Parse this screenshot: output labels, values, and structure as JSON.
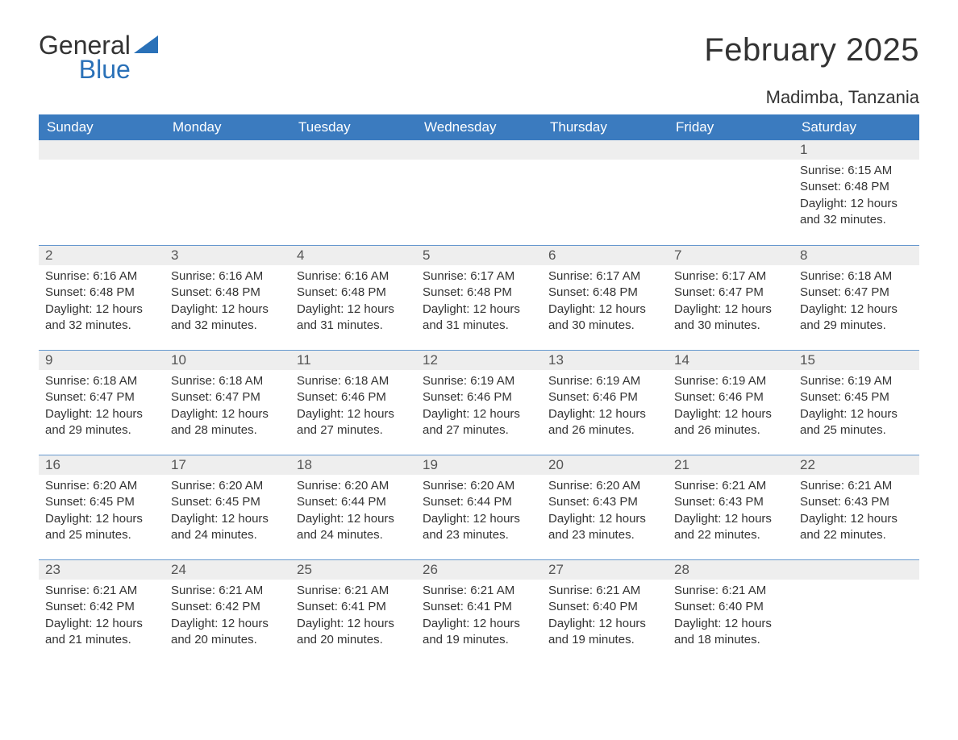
{
  "logo": {
    "line1": "General",
    "line2": "Blue",
    "shape_color": "#2a71b8"
  },
  "title": "February 2025",
  "location": "Madimba, Tanzania",
  "colors": {
    "header_bg": "#3b7bbf",
    "header_text": "#ffffff",
    "daynum_bg": "#eeeeee",
    "daynum_text": "#555555",
    "body_text": "#333333",
    "week_border": "#6698ce",
    "page_bg": "#ffffff"
  },
  "weekdays": [
    "Sunday",
    "Monday",
    "Tuesday",
    "Wednesday",
    "Thursday",
    "Friday",
    "Saturday"
  ],
  "weeks": [
    [
      {
        "num": "",
        "sunrise": "",
        "sunset": "",
        "daylight_a": "",
        "daylight_b": ""
      },
      {
        "num": "",
        "sunrise": "",
        "sunset": "",
        "daylight_a": "",
        "daylight_b": ""
      },
      {
        "num": "",
        "sunrise": "",
        "sunset": "",
        "daylight_a": "",
        "daylight_b": ""
      },
      {
        "num": "",
        "sunrise": "",
        "sunset": "",
        "daylight_a": "",
        "daylight_b": ""
      },
      {
        "num": "",
        "sunrise": "",
        "sunset": "",
        "daylight_a": "",
        "daylight_b": ""
      },
      {
        "num": "",
        "sunrise": "",
        "sunset": "",
        "daylight_a": "",
        "daylight_b": ""
      },
      {
        "num": "1",
        "sunrise": "Sunrise: 6:15 AM",
        "sunset": "Sunset: 6:48 PM",
        "daylight_a": "Daylight: 12 hours",
        "daylight_b": "and 32 minutes."
      }
    ],
    [
      {
        "num": "2",
        "sunrise": "Sunrise: 6:16 AM",
        "sunset": "Sunset: 6:48 PM",
        "daylight_a": "Daylight: 12 hours",
        "daylight_b": "and 32 minutes."
      },
      {
        "num": "3",
        "sunrise": "Sunrise: 6:16 AM",
        "sunset": "Sunset: 6:48 PM",
        "daylight_a": "Daylight: 12 hours",
        "daylight_b": "and 32 minutes."
      },
      {
        "num": "4",
        "sunrise": "Sunrise: 6:16 AM",
        "sunset": "Sunset: 6:48 PM",
        "daylight_a": "Daylight: 12 hours",
        "daylight_b": "and 31 minutes."
      },
      {
        "num": "5",
        "sunrise": "Sunrise: 6:17 AM",
        "sunset": "Sunset: 6:48 PM",
        "daylight_a": "Daylight: 12 hours",
        "daylight_b": "and 31 minutes."
      },
      {
        "num": "6",
        "sunrise": "Sunrise: 6:17 AM",
        "sunset": "Sunset: 6:48 PM",
        "daylight_a": "Daylight: 12 hours",
        "daylight_b": "and 30 minutes."
      },
      {
        "num": "7",
        "sunrise": "Sunrise: 6:17 AM",
        "sunset": "Sunset: 6:47 PM",
        "daylight_a": "Daylight: 12 hours",
        "daylight_b": "and 30 minutes."
      },
      {
        "num": "8",
        "sunrise": "Sunrise: 6:18 AM",
        "sunset": "Sunset: 6:47 PM",
        "daylight_a": "Daylight: 12 hours",
        "daylight_b": "and 29 minutes."
      }
    ],
    [
      {
        "num": "9",
        "sunrise": "Sunrise: 6:18 AM",
        "sunset": "Sunset: 6:47 PM",
        "daylight_a": "Daylight: 12 hours",
        "daylight_b": "and 29 minutes."
      },
      {
        "num": "10",
        "sunrise": "Sunrise: 6:18 AM",
        "sunset": "Sunset: 6:47 PM",
        "daylight_a": "Daylight: 12 hours",
        "daylight_b": "and 28 minutes."
      },
      {
        "num": "11",
        "sunrise": "Sunrise: 6:18 AM",
        "sunset": "Sunset: 6:46 PM",
        "daylight_a": "Daylight: 12 hours",
        "daylight_b": "and 27 minutes."
      },
      {
        "num": "12",
        "sunrise": "Sunrise: 6:19 AM",
        "sunset": "Sunset: 6:46 PM",
        "daylight_a": "Daylight: 12 hours",
        "daylight_b": "and 27 minutes."
      },
      {
        "num": "13",
        "sunrise": "Sunrise: 6:19 AM",
        "sunset": "Sunset: 6:46 PM",
        "daylight_a": "Daylight: 12 hours",
        "daylight_b": "and 26 minutes."
      },
      {
        "num": "14",
        "sunrise": "Sunrise: 6:19 AM",
        "sunset": "Sunset: 6:46 PM",
        "daylight_a": "Daylight: 12 hours",
        "daylight_b": "and 26 minutes."
      },
      {
        "num": "15",
        "sunrise": "Sunrise: 6:19 AM",
        "sunset": "Sunset: 6:45 PM",
        "daylight_a": "Daylight: 12 hours",
        "daylight_b": "and 25 minutes."
      }
    ],
    [
      {
        "num": "16",
        "sunrise": "Sunrise: 6:20 AM",
        "sunset": "Sunset: 6:45 PM",
        "daylight_a": "Daylight: 12 hours",
        "daylight_b": "and 25 minutes."
      },
      {
        "num": "17",
        "sunrise": "Sunrise: 6:20 AM",
        "sunset": "Sunset: 6:45 PM",
        "daylight_a": "Daylight: 12 hours",
        "daylight_b": "and 24 minutes."
      },
      {
        "num": "18",
        "sunrise": "Sunrise: 6:20 AM",
        "sunset": "Sunset: 6:44 PM",
        "daylight_a": "Daylight: 12 hours",
        "daylight_b": "and 24 minutes."
      },
      {
        "num": "19",
        "sunrise": "Sunrise: 6:20 AM",
        "sunset": "Sunset: 6:44 PM",
        "daylight_a": "Daylight: 12 hours",
        "daylight_b": "and 23 minutes."
      },
      {
        "num": "20",
        "sunrise": "Sunrise: 6:20 AM",
        "sunset": "Sunset: 6:43 PM",
        "daylight_a": "Daylight: 12 hours",
        "daylight_b": "and 23 minutes."
      },
      {
        "num": "21",
        "sunrise": "Sunrise: 6:21 AM",
        "sunset": "Sunset: 6:43 PM",
        "daylight_a": "Daylight: 12 hours",
        "daylight_b": "and 22 minutes."
      },
      {
        "num": "22",
        "sunrise": "Sunrise: 6:21 AM",
        "sunset": "Sunset: 6:43 PM",
        "daylight_a": "Daylight: 12 hours",
        "daylight_b": "and 22 minutes."
      }
    ],
    [
      {
        "num": "23",
        "sunrise": "Sunrise: 6:21 AM",
        "sunset": "Sunset: 6:42 PM",
        "daylight_a": "Daylight: 12 hours",
        "daylight_b": "and 21 minutes."
      },
      {
        "num": "24",
        "sunrise": "Sunrise: 6:21 AM",
        "sunset": "Sunset: 6:42 PM",
        "daylight_a": "Daylight: 12 hours",
        "daylight_b": "and 20 minutes."
      },
      {
        "num": "25",
        "sunrise": "Sunrise: 6:21 AM",
        "sunset": "Sunset: 6:41 PM",
        "daylight_a": "Daylight: 12 hours",
        "daylight_b": "and 20 minutes."
      },
      {
        "num": "26",
        "sunrise": "Sunrise: 6:21 AM",
        "sunset": "Sunset: 6:41 PM",
        "daylight_a": "Daylight: 12 hours",
        "daylight_b": "and 19 minutes."
      },
      {
        "num": "27",
        "sunrise": "Sunrise: 6:21 AM",
        "sunset": "Sunset: 6:40 PM",
        "daylight_a": "Daylight: 12 hours",
        "daylight_b": "and 19 minutes."
      },
      {
        "num": "28",
        "sunrise": "Sunrise: 6:21 AM",
        "sunset": "Sunset: 6:40 PM",
        "daylight_a": "Daylight: 12 hours",
        "daylight_b": "and 18 minutes."
      },
      {
        "num": "",
        "sunrise": "",
        "sunset": "",
        "daylight_a": "",
        "daylight_b": ""
      }
    ]
  ]
}
